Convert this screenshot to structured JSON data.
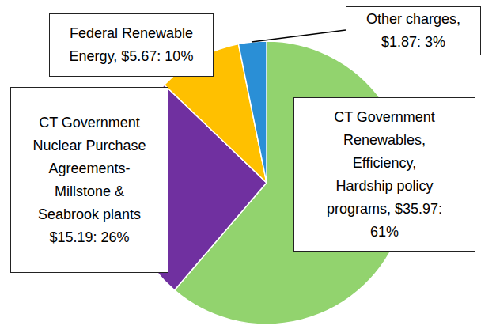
{
  "chart_data": {
    "type": "pie",
    "categories": [
      "CT Government Renewables, Efficiency, Hardship policy programs,",
      "CT Government Nuclear Purchase Agreements- Millstone & Seabrook plants",
      "Federal Renewable Energy,",
      "Other charges,"
    ],
    "values": [
      35.97,
      15.19,
      5.67,
      1.87
    ],
    "value_labels": [
      "$35.97: 61%",
      "$15.19: 26%",
      "$5.67: 10%",
      "$1.87: 3%"
    ],
    "colors": [
      "#92d36e",
      "#7030a0",
      "#ffc000",
      "#2a8fd6"
    ],
    "data_labels": true
  }
}
